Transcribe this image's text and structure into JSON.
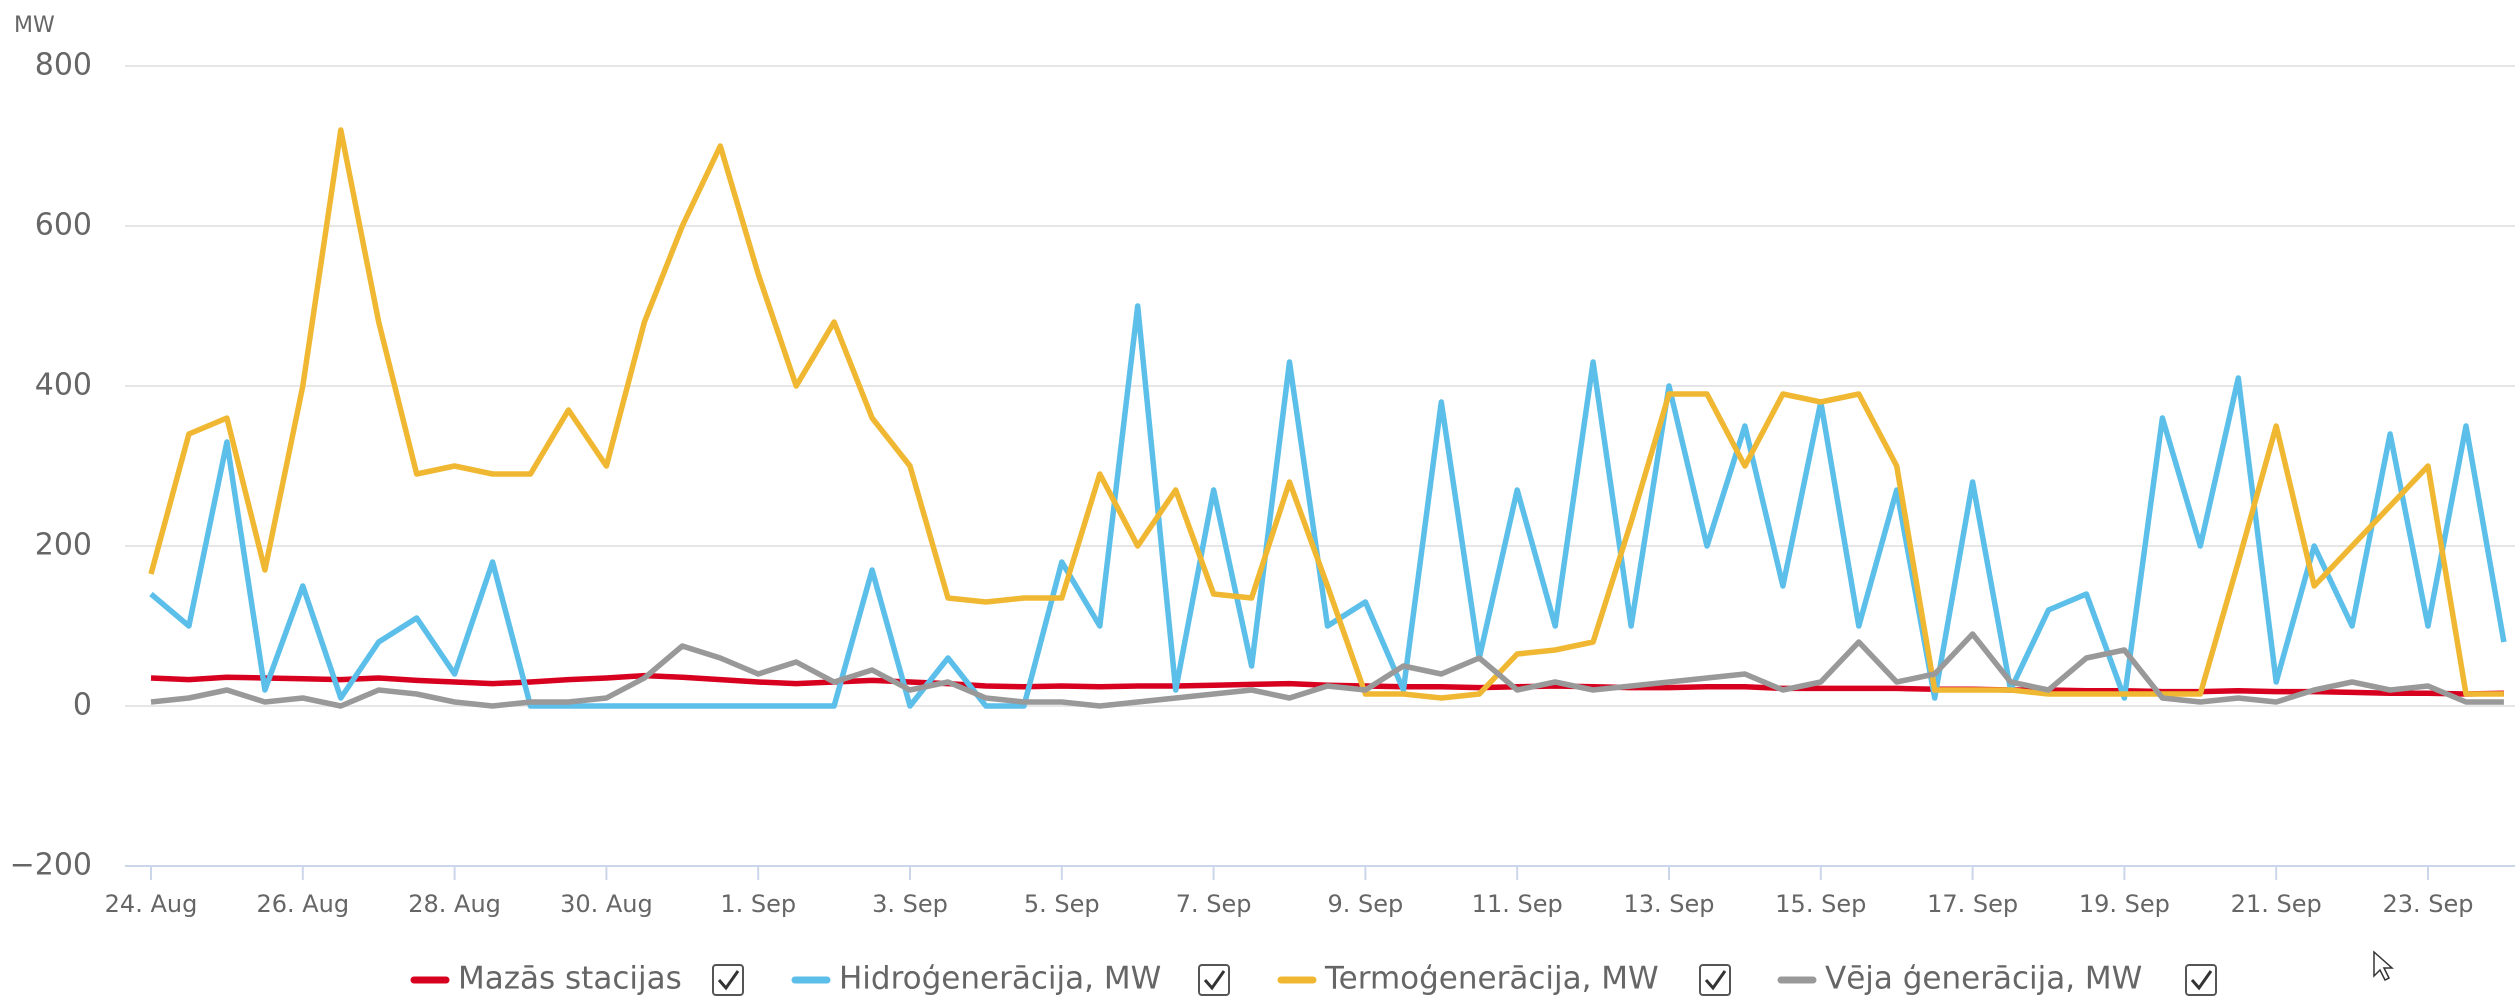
{
  "chart_data": {
    "type": "line",
    "y_label": "MW",
    "ylim": [
      -200,
      800
    ],
    "yticks": [
      {
        "value": -200,
        "label": "−200"
      },
      0,
      200,
      400,
      600,
      800
    ],
    "grid": true,
    "legend": "bottom",
    "categories": [
      "24. Aug",
      null,
      null,
      null,
      "26. Aug",
      null,
      null,
      null,
      "28. Aug",
      null,
      null,
      null,
      "30. Aug",
      null,
      null,
      null,
      "1. Sep",
      null,
      null,
      null,
      "3. Sep",
      null,
      null,
      null,
      "5. Sep",
      null,
      null,
      null,
      "7. Sep",
      null,
      null,
      null,
      "9. Sep",
      null,
      null,
      null,
      "11. Sep",
      null,
      null,
      null,
      "13. Sep",
      null,
      null,
      null,
      "15. Sep",
      null,
      null,
      null,
      "17. Sep",
      null,
      null,
      null,
      "19. Sep",
      null,
      null,
      null,
      "21. Sep",
      null,
      null,
      null,
      "23. Sep",
      null,
      null
    ],
    "series": [
      {
        "name": "Mazās stacijas",
        "color": "#d7001f",
        "values": [
          35,
          33,
          36,
          35,
          34,
          33,
          35,
          32,
          30,
          28,
          30,
          33,
          35,
          38,
          36,
          33,
          30,
          28,
          30,
          32,
          30,
          28,
          25,
          24,
          25,
          24,
          25,
          25,
          26,
          27,
          28,
          26,
          25,
          24,
          24,
          23,
          24,
          25,
          24,
          23,
          23,
          24,
          24,
          22,
          22,
          22,
          22,
          21,
          21,
          20,
          20,
          19,
          19,
          18,
          18,
          19,
          18,
          18,
          17,
          16,
          16,
          15,
          16
        ]
      },
      {
        "name": "Hidroģenerācija, MW",
        "color": "#5bbfea",
        "values": [
          140,
          100,
          330,
          20,
          150,
          10,
          80,
          110,
          40,
          180,
          0,
          0,
          0,
          0,
          0,
          0,
          0,
          0,
          0,
          170,
          0,
          60,
          0,
          0,
          180,
          100,
          500,
          20,
          270,
          50,
          430,
          100,
          130,
          20,
          380,
          60,
          270,
          100,
          430,
          100,
          400,
          200,
          350,
          150,
          380,
          100,
          270,
          10,
          280,
          20,
          120,
          140,
          10,
          360,
          200,
          410,
          30,
          200,
          100,
          340,
          100,
          350,
          80
        ]
      },
      {
        "name": "Termoģenerācija, MW",
        "color": "#f0b832",
        "values": [
          165,
          340,
          360,
          170,
          400,
          720,
          480,
          290,
          300,
          290,
          290,
          370,
          300,
          480,
          600,
          700,
          540,
          400,
          480,
          360,
          300,
          135,
          130,
          135,
          135,
          290,
          200,
          270,
          140,
          135,
          280,
          150,
          15,
          15,
          10,
          15,
          65,
          70,
          80,
          230,
          390,
          390,
          300,
          390,
          380,
          390,
          300,
          20,
          20,
          20,
          15,
          15,
          15,
          15,
          15,
          180,
          350,
          150,
          200,
          250,
          300,
          15,
          15
        ]
      },
      {
        "name": "Vēja ģenerācija, MW",
        "color": "#999999",
        "values": [
          5,
          10,
          20,
          5,
          10,
          0,
          20,
          15,
          5,
          0,
          5,
          5,
          10,
          35,
          75,
          60,
          40,
          55,
          30,
          45,
          20,
          30,
          10,
          5,
          5,
          0,
          5,
          10,
          15,
          20,
          10,
          25,
          20,
          50,
          40,
          60,
          20,
          30,
          20,
          25,
          30,
          35,
          40,
          20,
          30,
          80,
          30,
          40,
          90,
          30,
          20,
          60,
          70,
          10,
          5,
          10,
          5,
          20,
          30,
          20,
          25,
          5,
          5
        ]
      }
    ]
  }
}
